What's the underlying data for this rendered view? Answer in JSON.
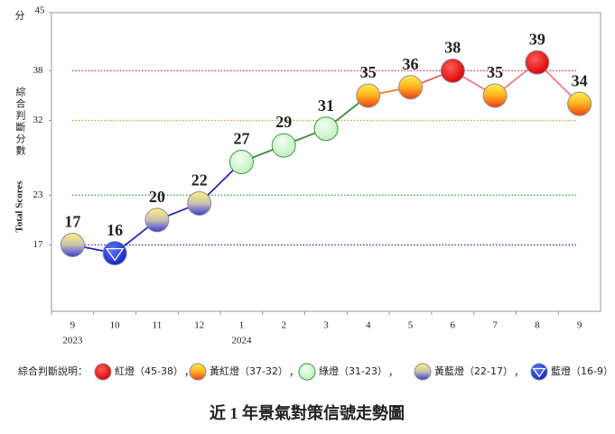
{
  "chart_data": {
    "type": "line",
    "title": "近 1 年景氣對策信號走勢圖",
    "y_unit": "分",
    "y_label_zh": "綜合判斷分數",
    "y_label_en": "Total Scores",
    "categories": [
      "9",
      "10",
      "11",
      "12",
      "1",
      "2",
      "3",
      "4",
      "5",
      "6",
      "7",
      "8",
      "9"
    ],
    "year_labels": [
      {
        "index": 0,
        "label": "2023"
      },
      {
        "index": 4,
        "label": "2024"
      }
    ],
    "series": [
      {
        "name": "綜合判斷分數",
        "values": [
          17,
          16,
          20,
          22,
          27,
          29,
          31,
          35,
          36,
          38,
          35,
          39,
          34
        ],
        "colors": [
          "yellow-blue",
          "blue",
          "yellow-blue",
          "yellow-blue",
          "green",
          "green",
          "green",
          "yellow-red",
          "yellow-red",
          "red",
          "yellow-red",
          "red",
          "yellow-red"
        ],
        "line_colors": [
          "#2a2ab8",
          "#2a2ab8",
          "#2a2ab8",
          "#2a2ab8",
          "#3d8a3d",
          "#3d8a3d",
          "#3d8a3d",
          "#f08020",
          "#f06060",
          "#f07a8a",
          "#f07a8a",
          "#f07a8a"
        ]
      }
    ],
    "ylim": [
      9,
      45
    ],
    "yticks": [
      17,
      23,
      32,
      38,
      45
    ],
    "reference_lines": [
      {
        "value": 38,
        "color": "#d33"
      },
      {
        "value": 32,
        "color": "#e69a1c"
      },
      {
        "value": 23,
        "color": "#3a9a3a"
      },
      {
        "value": 17,
        "color": "#3a3ab0"
      }
    ],
    "legend_title": "綜合判斷說明：",
    "legend_separator": "，",
    "legend": [
      {
        "label": "紅燈（45-38）",
        "color": "red"
      },
      {
        "label": "黃紅燈（37-32）",
        "color": "yellow-red"
      },
      {
        "label": "綠燈（31-23）",
        "color": "green"
      },
      {
        "label": "黃藍燈（22-17）",
        "color": "yellow-blue"
      },
      {
        "label": "藍燈（16-9）",
        "color": "blue"
      }
    ]
  }
}
